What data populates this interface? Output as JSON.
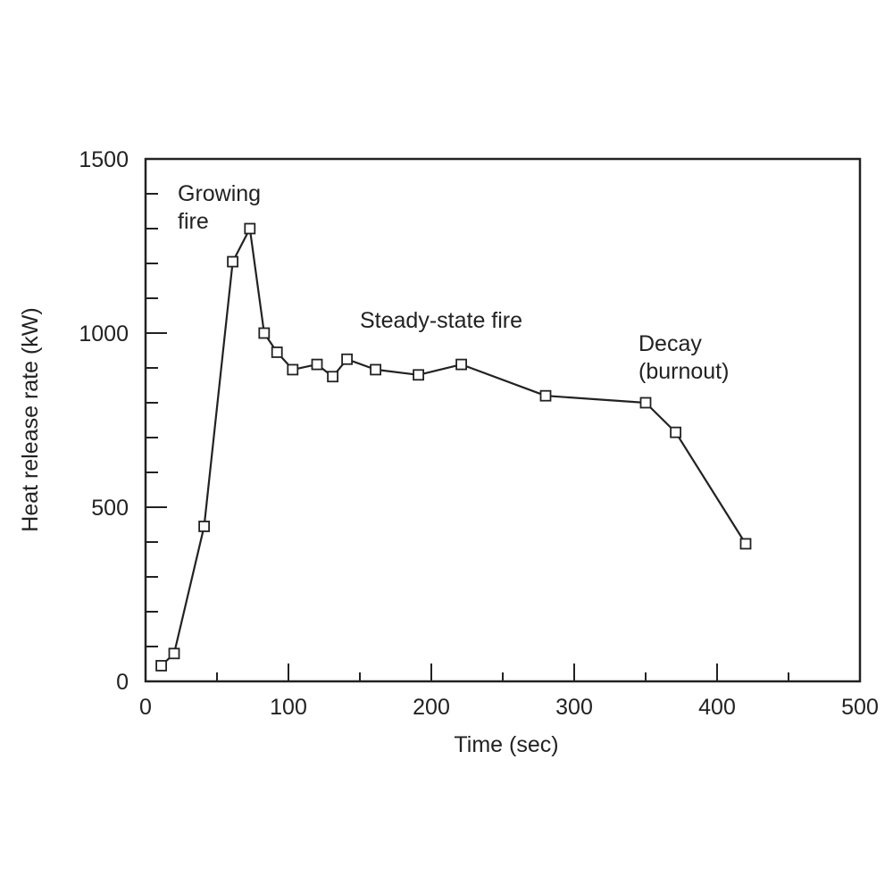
{
  "chart_data": {
    "type": "line",
    "title": "",
    "xlabel": "Time (sec)",
    "ylabel": "Heat release rate (kW)",
    "xlim": [
      0,
      500
    ],
    "ylim": [
      0,
      1500
    ],
    "x_ticks": [
      0,
      100,
      200,
      300,
      400,
      500
    ],
    "y_ticks": [
      0,
      500,
      1000,
      1500
    ],
    "x_tick_labels": [
      "0",
      "100",
      "200",
      "300",
      "400",
      "500"
    ],
    "y_tick_labels": [
      "0",
      "500",
      "1000",
      "1500"
    ],
    "x_minor_step": 50,
    "y_minor_step": 100,
    "grid": false,
    "marker": "open-square",
    "line_color": "#222222",
    "series": [
      {
        "x": [
          11,
          20,
          41,
          61,
          73,
          83,
          92,
          103,
          120,
          131,
          141,
          161,
          191,
          221,
          280,
          350,
          371,
          420
        ],
        "y": [
          45,
          80,
          445,
          1205,
          1300,
          1000,
          945,
          895,
          910,
          875,
          925,
          895,
          880,
          910,
          820,
          800,
          715,
          395
        ]
      }
    ],
    "annotations": {
      "growing": [
        "Growing",
        "fire"
      ],
      "steady": "Steady-state fire",
      "decay": [
        "Decay",
        "(burnout)"
      ]
    }
  }
}
